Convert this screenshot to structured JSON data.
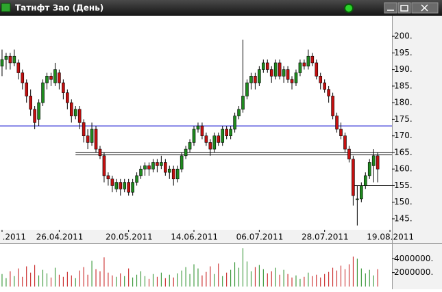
{
  "window": {
    "title": "Татнфт Зао (День)"
  },
  "chart_data": {
    "type": "candlestick",
    "ylim": [
      141.7,
      206
    ],
    "yticks": [
      {
        "value": 145,
        "label": "145."
      },
      {
        "value": 150,
        "label": "150."
      },
      {
        "value": 155,
        "label": "155."
      },
      {
        "value": 160,
        "label": "160."
      },
      {
        "value": 165,
        "label": "165."
      },
      {
        "value": 170,
        "label": "170."
      },
      {
        "value": 175,
        "label": "175."
      },
      {
        "value": 180,
        "label": "180."
      },
      {
        "value": 185,
        "label": "185."
      },
      {
        "value": 190,
        "label": "190."
      },
      {
        "value": 195,
        "label": "195."
      },
      {
        "value": 200,
        "label": "200."
      }
    ],
    "xlim": [
      -0.5,
      95.5
    ],
    "xticks": [
      {
        "value": 0,
        "label": ".2011"
      },
      {
        "value": 14,
        "label": "26.04.2011"
      },
      {
        "value": 31,
        "label": "20.05.2011"
      },
      {
        "value": 47,
        "label": "14.06.2011"
      },
      {
        "value": 63,
        "label": "06.07.2011"
      },
      {
        "value": 79,
        "label": "28.07.2011"
      },
      {
        "value": 95,
        "label": "19.08.2011"
      }
    ],
    "up_color": "#1f8a1f",
    "down_color": "#c41010",
    "levels": [
      {
        "value": 173,
        "color": "#0000cc"
      },
      {
        "value": 165,
        "color": "#000000"
      },
      {
        "value": 164.3,
        "color": "#000000"
      },
      {
        "value": 155,
        "color": "#000000"
      }
    ],
    "candles": [
      [
        191,
        196,
        188,
        193
      ],
      [
        193,
        195,
        190,
        194
      ],
      [
        194,
        195,
        190,
        192
      ],
      [
        192,
        196,
        191,
        194
      ],
      [
        192,
        193,
        187,
        189
      ],
      [
        189,
        190,
        184,
        186
      ],
      [
        186,
        187,
        180,
        182
      ],
      [
        182,
        184,
        176,
        178
      ],
      [
        178,
        179,
        172,
        174
      ],
      [
        175,
        181,
        173,
        180
      ],
      [
        180,
        187,
        179,
        186
      ],
      [
        186,
        189,
        184,
        188
      ],
      [
        188,
        189,
        185,
        187
      ],
      [
        186,
        192,
        185,
        190
      ],
      [
        189,
        190,
        184,
        186
      ],
      [
        186,
        187,
        181,
        183
      ],
      [
        183,
        184,
        178,
        180
      ],
      [
        180,
        181,
        174,
        176
      ],
      [
        176,
        179,
        175,
        178
      ],
      [
        178,
        179,
        172,
        174
      ],
      [
        174,
        175,
        168,
        170
      ],
      [
        170,
        172,
        166,
        168
      ],
      [
        168,
        174,
        167,
        172
      ],
      [
        172,
        173,
        165,
        166
      ],
      [
        166,
        167,
        163,
        164
      ],
      [
        164,
        165,
        156,
        158
      ],
      [
        158,
        159,
        155,
        157
      ],
      [
        157,
        158,
        153,
        155
      ],
      [
        154,
        157,
        153,
        156
      ],
      [
        156,
        157,
        152,
        154
      ],
      [
        154,
        157,
        153,
        156
      ],
      [
        156,
        157,
        152,
        153
      ],
      [
        153,
        157,
        152,
        156
      ],
      [
        156,
        159,
        155,
        158
      ],
      [
        158,
        161,
        157,
        160
      ],
      [
        160,
        162,
        158,
        161
      ],
      [
        161,
        162,
        158,
        160
      ],
      [
        160,
        163,
        159,
        162
      ],
      [
        162,
        163,
        159,
        161
      ],
      [
        161,
        164,
        160,
        162
      ],
      [
        162,
        163,
        158,
        159
      ],
      [
        159,
        161,
        157,
        160
      ],
      [
        160,
        161,
        155,
        157
      ],
      [
        157,
        161,
        156,
        160
      ],
      [
        160,
        165,
        159,
        164
      ],
      [
        164,
        167,
        163,
        166
      ],
      [
        166,
        169,
        165,
        168
      ],
      [
        168,
        173,
        167,
        172
      ],
      [
        172,
        174,
        171,
        173
      ],
      [
        173,
        174,
        169,
        170
      ],
      [
        170,
        171,
        167,
        168
      ],
      [
        168,
        169,
        164,
        166
      ],
      [
        166,
        171,
        165,
        170
      ],
      [
        170,
        171,
        167,
        168
      ],
      [
        168,
        173,
        167,
        172
      ],
      [
        172,
        173,
        169,
        170
      ],
      [
        170,
        173,
        169,
        172
      ],
      [
        172,
        177,
        171,
        176
      ],
      [
        176,
        179,
        175,
        178
      ],
      [
        178,
        199,
        177,
        182
      ],
      [
        182,
        187,
        181,
        186
      ],
      [
        186,
        189,
        184,
        188
      ],
      [
        188,
        189,
        184,
        186
      ],
      [
        186,
        191,
        185,
        190
      ],
      [
        190,
        193,
        189,
        192
      ],
      [
        192,
        193,
        189,
        190
      ],
      [
        190,
        191,
        186,
        188
      ],
      [
        188,
        193,
        187,
        192
      ],
      [
        192,
        193,
        187,
        188
      ],
      [
        188,
        191,
        186,
        190
      ],
      [
        190,
        191,
        186,
        187
      ],
      [
        187,
        188,
        184,
        186
      ],
      [
        186,
        190,
        185,
        189
      ],
      [
        189,
        193,
        188,
        192
      ],
      [
        192,
        193,
        190,
        191
      ],
      [
        191,
        196,
        190,
        194
      ],
      [
        194,
        195,
        191,
        192
      ],
      [
        192,
        193,
        187,
        188
      ],
      [
        188,
        189,
        184,
        186
      ],
      [
        186,
        187,
        183,
        184
      ],
      [
        184,
        185,
        180,
        182
      ],
      [
        182,
        183,
        175,
        176
      ],
      [
        176,
        177,
        171,
        172
      ],
      [
        172,
        174,
        169,
        170
      ],
      [
        170,
        171,
        165,
        166
      ],
      [
        166,
        167,
        162,
        163
      ],
      [
        163,
        164,
        149,
        152
      ],
      [
        151,
        155,
        143,
        151
      ],
      [
        151,
        156,
        150,
        155
      ],
      [
        155,
        159,
        154,
        158
      ],
      [
        158,
        163,
        157,
        162
      ],
      [
        161,
        166,
        156,
        164
      ],
      [
        164,
        165,
        156,
        160
      ]
    ],
    "volume": {
      "ylim": [
        0,
        6000000
      ],
      "yticks": [
        {
          "value": 2000000,
          "label": "2000000."
        },
        {
          "value": 4000000,
          "label": "4000000."
        }
      ],
      "values": [
        1800000,
        1200000,
        2200000,
        1500000,
        2600000,
        1400000,
        2900000,
        2000000,
        3100000,
        1600000,
        2400000,
        1900000,
        1300000,
        2700000,
        1700000,
        1400000,
        2100000,
        1600000,
        1200000,
        2300000,
        2800000,
        1700000,
        3700000,
        2500000,
        2200000,
        4200000,
        2000000,
        1600000,
        1400000,
        1900000,
        1500000,
        2600000,
        1300000,
        1700000,
        2200000,
        1500000,
        1100000,
        1800000,
        1400000,
        2000000,
        1200000,
        1700000,
        1300000,
        1900000,
        2300000,
        2800000,
        1800000,
        3200000,
        2600000,
        1600000,
        2100000,
        2900000,
        1800000,
        3300000,
        1500000,
        2000000,
        2400000,
        3500000,
        2700000,
        5500000,
        3600000,
        2200000,
        2800000,
        3100000,
        2500000,
        1900000,
        2200000,
        2700000,
        1700000,
        2400000,
        1800000,
        1300000,
        1600000,
        1100000,
        1400000,
        2000000,
        1500000,
        1700000,
        1300000,
        1800000,
        2100000,
        2700000,
        2300000,
        3000000,
        2500000,
        3200000,
        4300000,
        4000000,
        2600000,
        1900000,
        2400000,
        1600000,
        2500000
      ]
    }
  }
}
